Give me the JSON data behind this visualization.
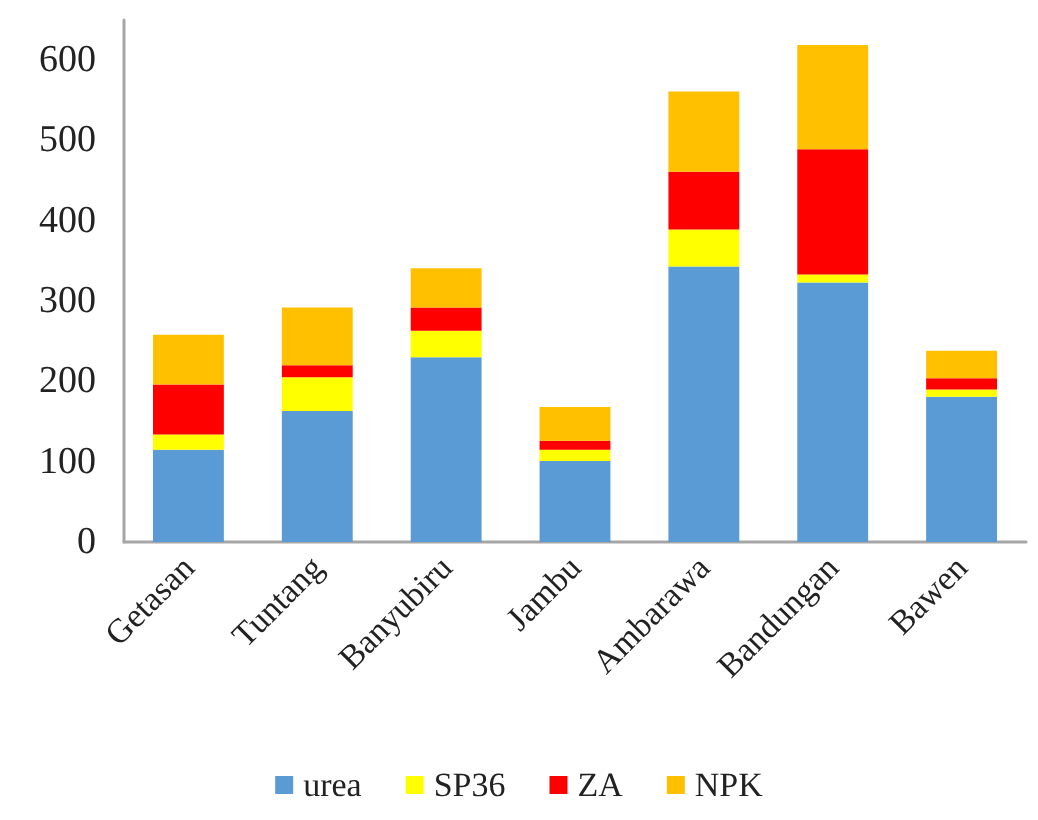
{
  "chart_data": {
    "type": "bar",
    "stacked": true,
    "categories": [
      "Getasan",
      "Tuntang",
      "Banyubiru",
      "Jambu",
      "Ambarawa",
      "Bandungan",
      "Bawen"
    ],
    "series": [
      {
        "name": "urea",
        "color": "#5b9bd5",
        "values": [
          115,
          163,
          230,
          101,
          343,
          323,
          181
        ]
      },
      {
        "name": "SP36",
        "color": "#ffff00",
        "values": [
          19,
          42,
          33,
          14,
          46,
          10,
          9
        ]
      },
      {
        "name": "ZA",
        "color": "#ff0000",
        "values": [
          62,
          15,
          29,
          11,
          72,
          156,
          14
        ]
      },
      {
        "name": "NPK",
        "color": "#ffc000",
        "values": [
          62,
          72,
          49,
          42,
          100,
          130,
          34
        ]
      }
    ],
    "ylim": [
      0,
      650
    ],
    "yticks": [
      0,
      100,
      200,
      300,
      400,
      500,
      600
    ],
    "grid": false,
    "legend": "bottom"
  }
}
